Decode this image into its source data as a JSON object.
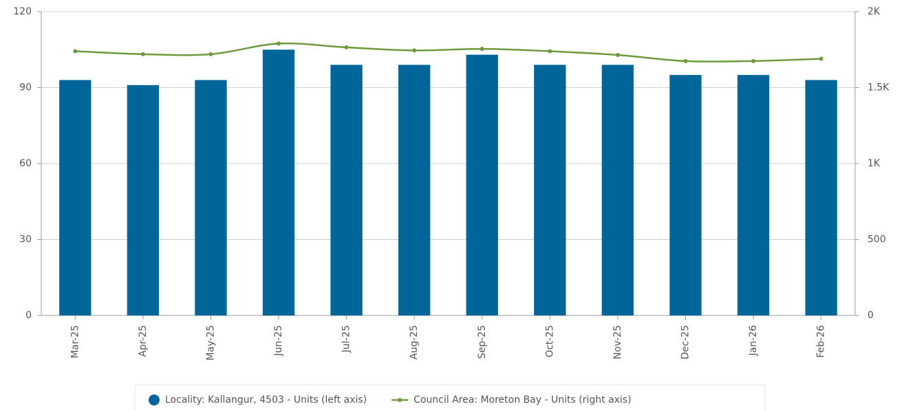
{
  "chart_data": {
    "type": "bar_line",
    "categories": [
      "Mar-25",
      "Apr-25",
      "May-25",
      "Jun-25",
      "Jul-25",
      "Aug-25",
      "Sep-25",
      "Oct-25",
      "Nov-25",
      "Dec-25",
      "Jan-26",
      "Feb-26"
    ],
    "series": [
      {
        "name": "Locality: Kallangur, 4503 - Units (left axis)",
        "color": "#006699",
        "type": "bar",
        "values": [
          93,
          91,
          93,
          105,
          99,
          99,
          103,
          99,
          99,
          95,
          95,
          93
        ]
      },
      {
        "name": "Council Area: Moreton Bay - Units (right axis)",
        "color": "#6e9a3c",
        "type": "line",
        "axis": "y2",
        "values": [
          1740,
          1720,
          1720,
          1790,
          1765,
          1745,
          1755,
          1740,
          1715,
          1675,
          1675,
          1690
        ]
      }
    ],
    "ylim": [
      0,
      120
    ],
    "yticks": [
      0,
      30,
      60,
      90,
      120
    ],
    "y2lim": [
      0,
      2000
    ],
    "y2ticks": [
      0,
      500,
      {
        "value": 1000,
        "label": "1K"
      },
      {
        "value": 1500,
        "label": "1.5K"
      },
      {
        "value": 2000,
        "label": "2K"
      }
    ],
    "grid": true,
    "legend": "bottom"
  }
}
